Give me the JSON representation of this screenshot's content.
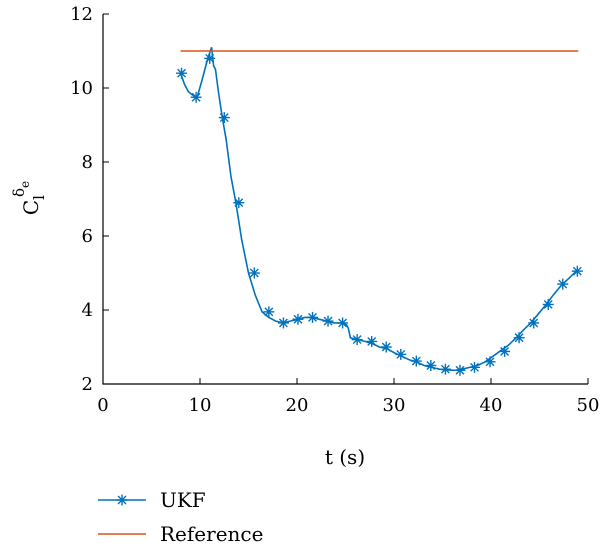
{
  "chart_data": {
    "type": "line",
    "xlabel": "t (s)",
    "ylabel": {
      "base": "C",
      "sub": "l",
      "sup": "δ",
      "sup_sub": "e"
    },
    "xlim": [
      0,
      50
    ],
    "ylim": [
      2,
      12
    ],
    "xticks": [
      0,
      10,
      20,
      30,
      40,
      50
    ],
    "yticks": [
      2,
      4,
      6,
      8,
      10,
      12
    ],
    "grid": false,
    "legend_position": "bottom-left",
    "series": [
      {
        "name": "UKF",
        "color": "#0072BD",
        "marker": "asterisk",
        "x": [
          8.0,
          8.4,
          8.8,
          9.3,
          9.7,
          10.2,
          10.8,
          11.2,
          11.4,
          11.6,
          11.9,
          12.3,
          12.7,
          13.2,
          13.7,
          14.3,
          15.0,
          15.7,
          16.4,
          17.1,
          17.8,
          18.6,
          19.3,
          20.1,
          20.8,
          21.6,
          22.3,
          23.1,
          23.8,
          24.6,
          25.1,
          25.3,
          25.5,
          26.2,
          27.0,
          27.7,
          28.5,
          29.3,
          30.0,
          30.8,
          31.6,
          32.3,
          33.1,
          33.9,
          34.7,
          35.5,
          36.3,
          37.0,
          37.8,
          38.6,
          39.4,
          40.2,
          41.0,
          41.8,
          42.6,
          43.3,
          44.1,
          44.9,
          45.7,
          46.4,
          47.2,
          48.0,
          48.8
        ],
        "y": [
          10.4,
          10.1,
          9.9,
          9.8,
          9.75,
          10.2,
          10.8,
          11.1,
          10.6,
          10.5,
          9.9,
          9.2,
          8.6,
          7.6,
          6.9,
          5.9,
          5.0,
          4.4,
          3.95,
          3.8,
          3.7,
          3.65,
          3.7,
          3.75,
          3.8,
          3.8,
          3.75,
          3.7,
          3.65,
          3.65,
          3.6,
          3.5,
          3.25,
          3.2,
          3.15,
          3.1,
          3.0,
          2.95,
          2.85,
          2.75,
          2.65,
          2.6,
          2.5,
          2.45,
          2.4,
          2.38,
          2.37,
          2.4,
          2.45,
          2.5,
          2.6,
          2.75,
          2.9,
          3.05,
          3.25,
          3.45,
          3.65,
          3.9,
          4.15,
          4.4,
          4.65,
          4.85,
          5.05
        ],
        "markers_x": [
          8.1,
          9.6,
          11.0,
          12.5,
          14.0,
          15.6,
          17.1,
          18.6,
          20.1,
          21.6,
          23.2,
          24.7,
          26.2,
          27.7,
          29.2,
          30.7,
          32.3,
          33.8,
          35.3,
          36.8,
          38.3,
          39.9,
          41.4,
          42.9,
          44.4,
          45.9,
          47.4,
          48.9
        ],
        "markers_y": [
          10.4,
          9.75,
          10.8,
          9.2,
          6.9,
          5.0,
          3.95,
          3.65,
          3.75,
          3.8,
          3.7,
          3.65,
          3.2,
          3.15,
          3.0,
          2.8,
          2.62,
          2.5,
          2.4,
          2.37,
          2.45,
          2.6,
          2.88,
          3.25,
          3.65,
          4.15,
          4.7,
          5.05
        ]
      },
      {
        "name": "Reference",
        "color": "#D95319",
        "marker": "none",
        "x": [
          8.0,
          49.0
        ],
        "y": [
          11.0,
          11.0
        ]
      }
    ]
  }
}
